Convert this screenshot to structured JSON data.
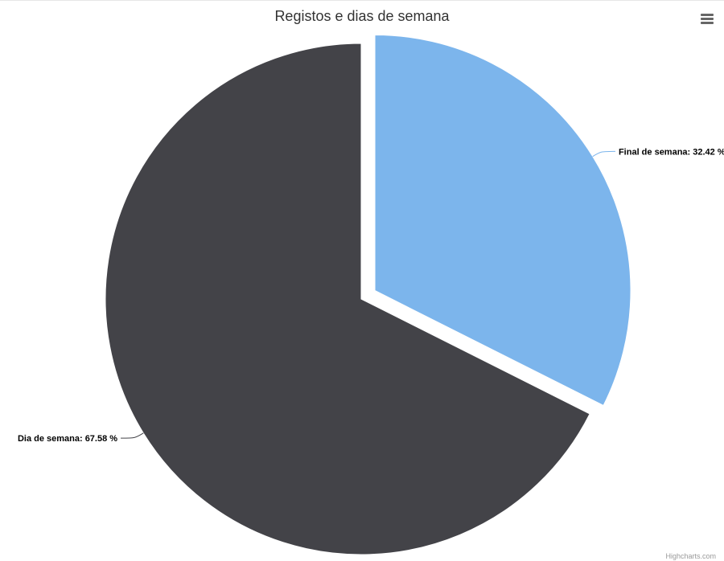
{
  "chart_data": {
    "type": "pie",
    "title": "Registos e dias de semana",
    "series": [
      {
        "name": "",
        "data": [
          {
            "label": "Final de semana: 32.42 %",
            "name": "Final de semana",
            "value": 32.42,
            "color": "#7cb5ec",
            "sliced": true
          },
          {
            "label": "Dia de semana: 67.58 %",
            "name": "Dia de semana",
            "value": 67.58,
            "color": "#434348",
            "sliced": false
          }
        ]
      }
    ],
    "unit": "%"
  },
  "menu": {
    "icon": "hamburger-menu-icon"
  },
  "credits": {
    "text": "Highcharts.com"
  }
}
